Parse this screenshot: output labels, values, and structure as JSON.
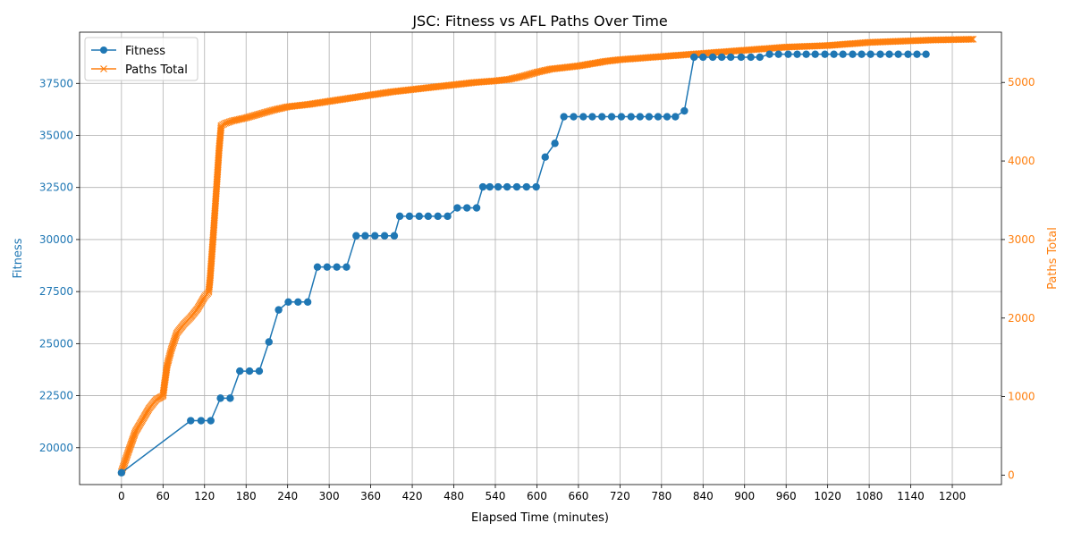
{
  "chart_data": {
    "type": "line",
    "title": "JSC: Fitness vs AFL Paths Over Time",
    "xlabel": "Elapsed Time (minutes)",
    "ylabel": "Fitness",
    "ylabel_right": "Paths Total",
    "xlim": [
      -60.5,
      1271
    ],
    "ylim": [
      18230,
      39960
    ],
    "ylim_right": [
      -120,
      5640
    ],
    "x_ticks": [
      0,
      60,
      120,
      180,
      240,
      300,
      360,
      420,
      480,
      540,
      600,
      660,
      720,
      780,
      840,
      900,
      960,
      1020,
      1080,
      1140,
      1200
    ],
    "y_ticks": [
      20000,
      22500,
      25000,
      27500,
      30000,
      32500,
      35000,
      37500
    ],
    "y_ticks_right": [
      0,
      1000,
      2000,
      3000,
      4000,
      5000
    ],
    "grid": true,
    "legend_placement": "top-left",
    "colors": {
      "fitness": "#1f77b4",
      "paths": "#ff7f0e"
    },
    "series": [
      {
        "name": "Fitness",
        "axis": "left",
        "marker": "circle",
        "x": [
          0,
          100,
          115,
          129,
          143,
          157,
          171,
          185,
          199,
          213,
          227,
          241,
          255,
          269,
          283,
          297,
          311,
          325,
          339,
          352,
          366,
          380,
          394,
          402,
          416,
          430,
          443,
          457,
          471,
          485,
          499,
          513,
          522,
          532,
          544,
          557,
          571,
          585,
          599,
          612,
          626,
          639,
          653,
          667,
          680,
          694,
          708,
          722,
          736,
          749,
          762,
          775,
          788,
          800,
          813,
          827,
          840,
          854,
          867,
          880,
          895,
          909,
          922,
          936,
          949,
          963,
          976,
          989,
          1002,
          1016,
          1029,
          1042,
          1056,
          1069,
          1082,
          1096,
          1109,
          1122,
          1136,
          1149,
          1162
        ],
        "y": [
          18800,
          21300,
          21300,
          21300,
          22380,
          22380,
          23680,
          23680,
          23680,
          25080,
          26620,
          27000,
          27000,
          27000,
          28680,
          28680,
          28680,
          28680,
          30180,
          30180,
          30180,
          30180,
          30180,
          31120,
          31120,
          31120,
          31120,
          31120,
          31120,
          31520,
          31520,
          31520,
          32530,
          32530,
          32530,
          32530,
          32530,
          32530,
          32530,
          33960,
          34620,
          35900,
          35900,
          35900,
          35900,
          35900,
          35900,
          35900,
          35900,
          35900,
          35900,
          35900,
          35900,
          35900,
          36180,
          38760,
          38760,
          38760,
          38760,
          38760,
          38760,
          38760,
          38760,
          38900,
          38900,
          38900,
          38900,
          38900,
          38900,
          38900,
          38900,
          38900,
          38900,
          38900,
          38900,
          38900,
          38900,
          38900,
          38900,
          38900,
          38900
        ]
      },
      {
        "name": "Paths Total",
        "axis": "right",
        "marker": "x",
        "x": [
          0,
          10,
          20,
          30,
          40,
          50,
          60,
          62,
          66,
          72,
          80,
          90,
          100,
          110,
          120,
          126,
          128,
          133,
          138,
          141,
          144,
          150,
          160,
          180,
          200,
          220,
          240,
          270,
          300,
          330,
          360,
          390,
          420,
          450,
          480,
          510,
          540,
          560,
          580,
          600,
          620,
          640,
          660,
          680,
          700,
          720,
          750,
          780,
          810,
          840,
          870,
          900,
          930,
          960,
          990,
          1020,
          1050,
          1080,
          1110,
          1140,
          1170,
          1200,
          1230
        ],
        "y": [
          40,
          300,
          550,
          700,
          850,
          960,
          1010,
          1150,
          1400,
          1600,
          1810,
          1920,
          2010,
          2120,
          2270,
          2330,
          2500,
          3100,
          3750,
          4150,
          4450,
          4480,
          4510,
          4550,
          4600,
          4650,
          4690,
          4720,
          4760,
          4800,
          4840,
          4880,
          4910,
          4940,
          4970,
          5000,
          5020,
          5040,
          5080,
          5130,
          5170,
          5190,
          5210,
          5240,
          5270,
          5290,
          5310,
          5330,
          5350,
          5370,
          5390,
          5410,
          5430,
          5450,
          5460,
          5470,
          5490,
          5510,
          5520,
          5530,
          5540,
          5545,
          5550
        ]
      }
    ]
  }
}
